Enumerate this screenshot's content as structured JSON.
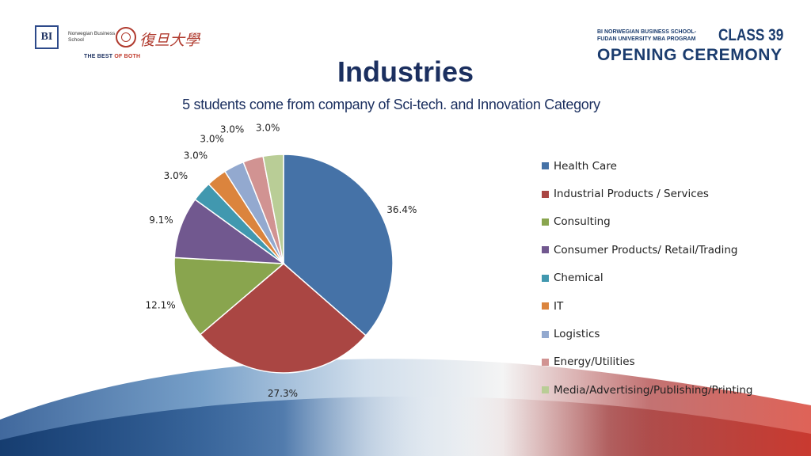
{
  "header": {
    "bi_logo_text": "BI",
    "bi_school_name": "Norwegian Business School",
    "bi_tagline_prefix": "THE BEST ",
    "bi_tagline_accent": "OF BOTH",
    "fudan_name": "復旦大學",
    "program_line1": "BI NORWEGIAN BUSINESS SCHOOL-",
    "program_line2": "FUDAN UNIVERSITY MBA PROGRAM",
    "class_label": "CLASS 39",
    "ceremony_label": "OPENING CEREMONY"
  },
  "colors": {
    "brand_navy": "#1b2f5f",
    "brand_red": "#c0392b",
    "wave_blue": "#1f4e8c",
    "wave_red": "#d9473a"
  },
  "chart_data": {
    "type": "pie",
    "title": "Industries",
    "subtitle": "5 students come from company of Sci-tech. and Innovation Category",
    "legend_position": "right",
    "slices": [
      {
        "label": "Health Care",
        "value": 36.4,
        "display": "36.4%",
        "color": "#4572a7"
      },
      {
        "label": "Industrial Products / Services",
        "value": 27.3,
        "display": "27.3%",
        "color": "#aa4643"
      },
      {
        "label": "Consulting",
        "value": 12.1,
        "display": "12.1%",
        "color": "#89a54e"
      },
      {
        "label": "Consumer Products/ Retail/Trading",
        "value": 9.1,
        "display": "9.1%",
        "color": "#71588f"
      },
      {
        "label": "Chemical",
        "value": 3.0,
        "display": "3.0%",
        "color": "#4198af"
      },
      {
        "label": "IT",
        "value": 3.0,
        "display": "3.0%",
        "color": "#db843d"
      },
      {
        "label": "Logistics",
        "value": 3.0,
        "display": "3.0%",
        "color": "#93a9cf"
      },
      {
        "label": "Energy/Utilities",
        "value": 3.0,
        "display": "3.0%",
        "color": "#d19392"
      },
      {
        "label": "Media/Advertising/Publishing/Printing",
        "value": 3.0,
        "display": "3.0%",
        "color": "#b9cd96"
      }
    ]
  }
}
